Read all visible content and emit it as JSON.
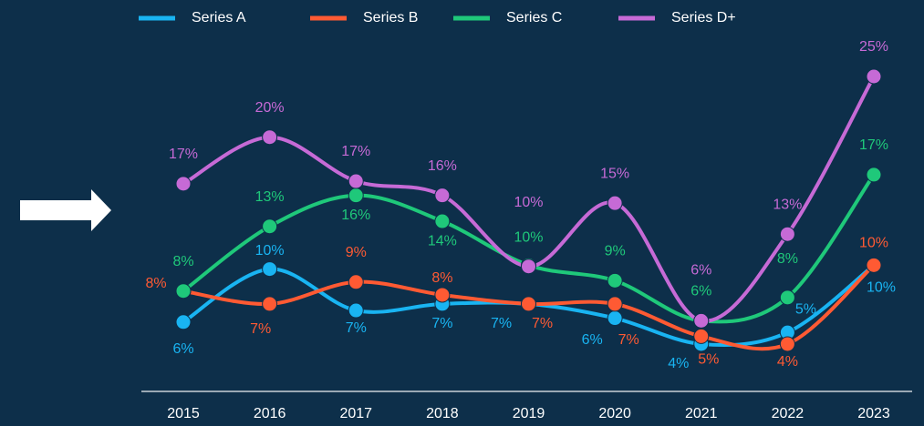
{
  "chart_data": {
    "type": "line",
    "categories": [
      "2015",
      "2016",
      "2017",
      "2018",
      "2019",
      "2020",
      "2021",
      "2022",
      "2023"
    ],
    "series": [
      {
        "name": "Series A",
        "color": "#19b4f2",
        "values": [
          6.0,
          10.1,
          6.9,
          7.4,
          7.4,
          6.3,
          4.3,
          5.2,
          10.4
        ],
        "value_labels": [
          "6%",
          "10%",
          "7%",
          "7%",
          "7%",
          "6%",
          "4%",
          "5%",
          "10%"
        ]
      },
      {
        "name": "Series B",
        "color": "#ff5a33",
        "values": [
          8.4,
          7.4,
          9.1,
          8.1,
          7.4,
          7.4,
          4.9,
          4.3,
          10.4
        ],
        "value_labels": [
          "8%",
          "7%",
          "9%",
          "8%",
          "7%",
          "7%",
          "5%",
          "4%",
          "10%"
        ]
      },
      {
        "name": "Series C",
        "color": "#1fc87a",
        "values": [
          8.4,
          13.4,
          15.8,
          13.8,
          10.4,
          9.2,
          6.1,
          7.9,
          17.4
        ],
        "value_labels": [
          "8%",
          "13%",
          "16%",
          "14%",
          "10%",
          "9%",
          "6%",
          "8%",
          "17%"
        ]
      },
      {
        "name": "Series D+",
        "color": "#c66ad6",
        "values": [
          16.7,
          20.3,
          16.9,
          15.8,
          10.3,
          15.2,
          6.1,
          12.8,
          25.0
        ],
        "value_labels": [
          "17%",
          "20%",
          "17%",
          "16%",
          "10%",
          "15%",
          "6%",
          "13%",
          "25%"
        ]
      }
    ],
    "legend": "top"
  }
}
